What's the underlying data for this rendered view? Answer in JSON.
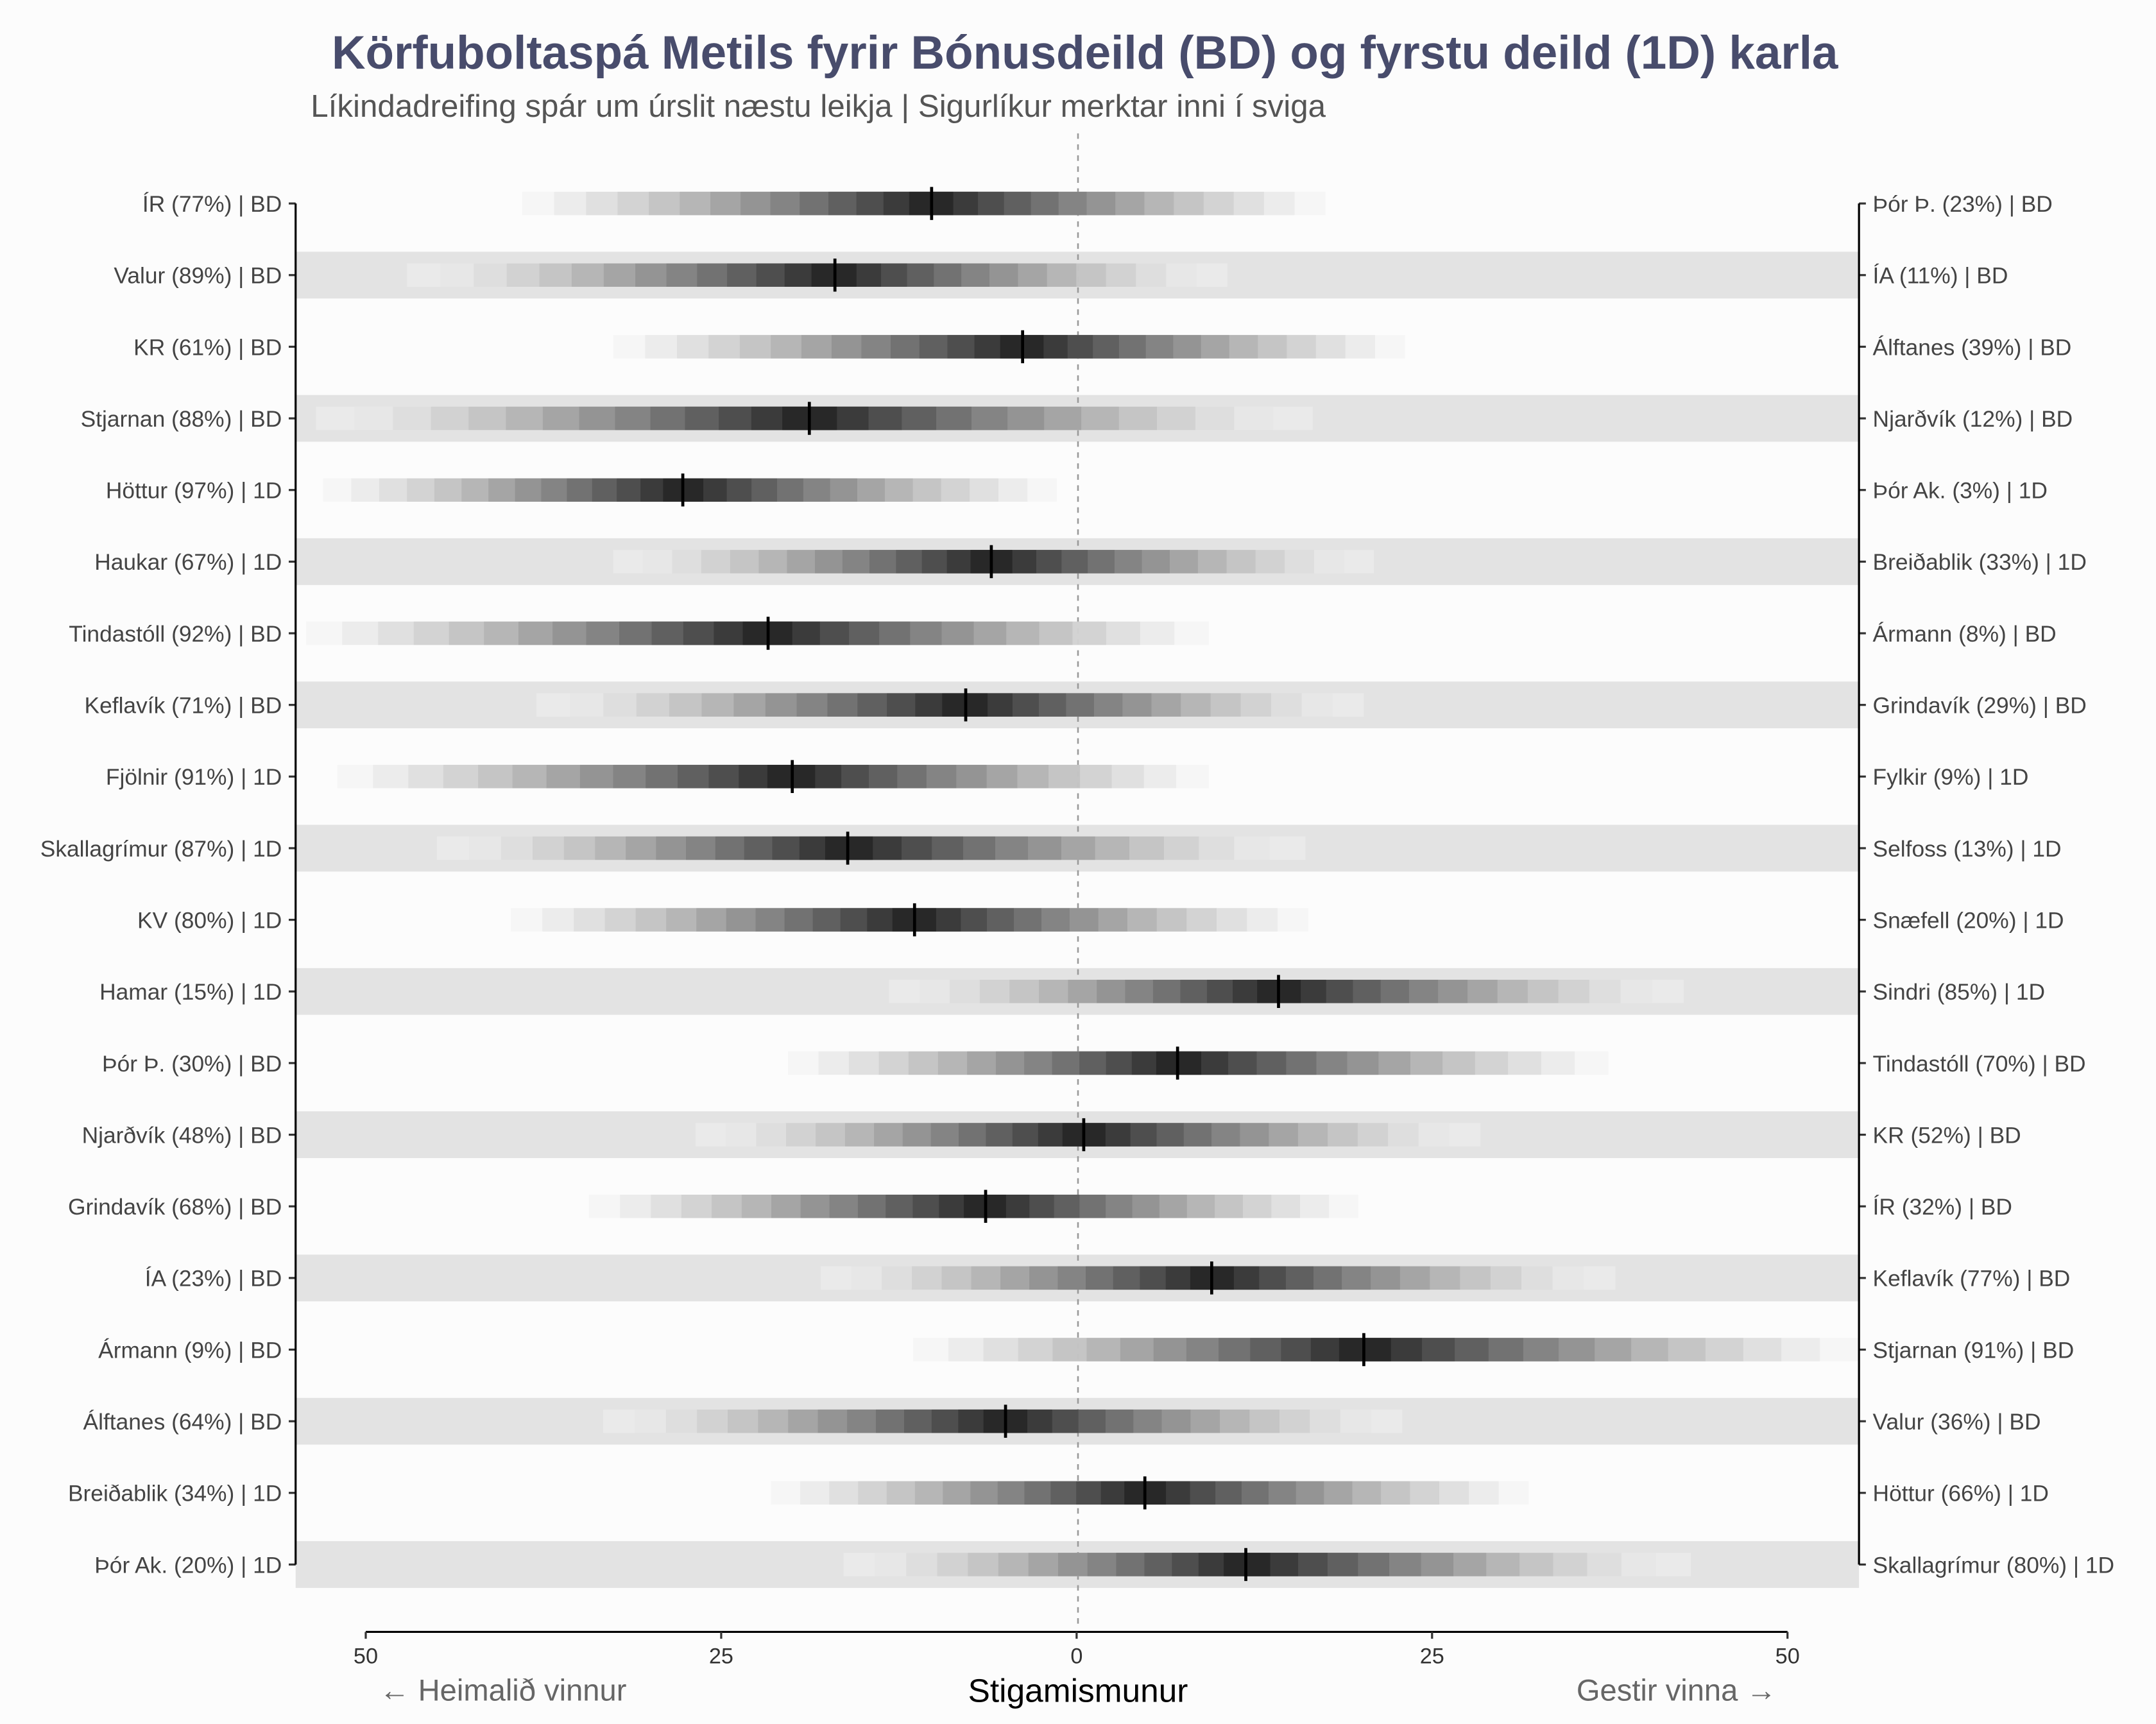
{
  "chart_data": {
    "type": "gradient-interval",
    "title": "Körfuboltaspá Metils fyrir Bónusdeild (BD) og fyrstu deild (1D) karla",
    "subtitle": "Líkindadreifing spár um úrslit næstu leikja | Sigurlíkur merktar inni í sviga",
    "xlabel": "Stigamismunur",
    "xlim": [
      -50,
      50
    ],
    "xticks": [
      -50,
      -25,
      0,
      25,
      50
    ],
    "xtick_labels": [
      "50",
      "25",
      "0",
      "25",
      "50"
    ],
    "left_annotation": "← Heimalið vinnur",
    "right_annotation": "Gestir vinna →",
    "games": [
      {
        "home": "ÍR (77%) | BD",
        "away": "Þór Þ. (23%) | BD",
        "median": -10.2,
        "lower": -39.0,
        "upper": 17.5
      },
      {
        "home": "Valur (89%) | BD",
        "away": "ÍA (11%) | BD",
        "median": -17.0,
        "lower": -47.1,
        "upper": 10.6
      },
      {
        "home": "KR (61%) | BD",
        "away": "Álftanes (39%) | BD",
        "median": -3.8,
        "lower": -32.6,
        "upper": 23.1
      },
      {
        "home": "Stjarnan (88%) | BD",
        "away": "Njarðvík (12%) | BD",
        "median": -18.8,
        "lower": -53.5,
        "upper": 16.6
      },
      {
        "home": "Höttur (97%) | 1D",
        "away": "Þór Ak. (3%) | 1D",
        "median": -27.7,
        "lower": -53.0,
        "upper": -1.4
      },
      {
        "home": "Haukar (67%) | 1D",
        "away": "Breiðablik (33%) | 1D",
        "median": -6.0,
        "lower": -32.6,
        "upper": 20.9
      },
      {
        "home": "Tindastóll (92%) | BD",
        "away": "Ármann (8%) | BD",
        "median": -21.7,
        "lower": -54.2,
        "upper": 9.3
      },
      {
        "home": "Keflavík (71%) | BD",
        "away": "Grindavík (29%) | BD",
        "median": -7.8,
        "lower": -38.0,
        "upper": 20.2
      },
      {
        "home": "Fjölnir (91%) | 1D",
        "away": "Fylkir (9%) | 1D",
        "median": -20.0,
        "lower": -52.0,
        "upper": 9.3
      },
      {
        "home": "Skallagrímur (87%) | 1D",
        "away": "Selfoss (13%) | 1D",
        "median": -16.1,
        "lower": -45.0,
        "upper": 16.1
      },
      {
        "home": "KV (80%) | 1D",
        "away": "Snæfell (20%) | 1D",
        "median": -11.4,
        "lower": -39.8,
        "upper": 16.3
      },
      {
        "home": "Hamar (15%) | 1D",
        "away": "Sindri (85%) | 1D",
        "median": 14.2,
        "lower": -13.2,
        "upper": 42.7
      },
      {
        "home": "Þór Þ. (30%) | BD",
        "away": "Tindastóll (70%) | BD",
        "median": 7.1,
        "lower": -20.3,
        "upper": 37.4
      },
      {
        "home": "Njarðvík (48%) | BD",
        "away": "KR (52%) | BD",
        "median": 0.5,
        "lower": -26.8,
        "upper": 28.4
      },
      {
        "home": "Grindavík (68%) | BD",
        "away": "ÍR (32%) | BD",
        "median": -6.4,
        "lower": -34.3,
        "upper": 19.8
      },
      {
        "home": "ÍA (23%) | BD",
        "away": "Keflavík (77%) | BD",
        "median": 9.5,
        "lower": -18.0,
        "upper": 37.9
      },
      {
        "home": "Ármann (9%) | BD",
        "away": "Stjarnan (91%) | BD",
        "median": 20.2,
        "lower": -11.5,
        "upper": 55.0
      },
      {
        "home": "Álftanes (64%) | BD",
        "away": "Valur (36%) | BD",
        "median": -5.0,
        "lower": -33.3,
        "upper": 22.9
      },
      {
        "home": "Breiðablik (34%) | 1D",
        "away": "Höttur (66%) | 1D",
        "median": 4.8,
        "lower": -21.5,
        "upper": 31.8
      },
      {
        "home": "Þór Ak. (20%) | 1D",
        "away": "Skallagrímur (80%) | 1D",
        "median": 11.9,
        "lower": -16.4,
        "upper": 43.2
      }
    ],
    "colors": {
      "title": "#484c6c",
      "row_shade": "#e3e3e3",
      "background": "#fcfcfc"
    }
  }
}
